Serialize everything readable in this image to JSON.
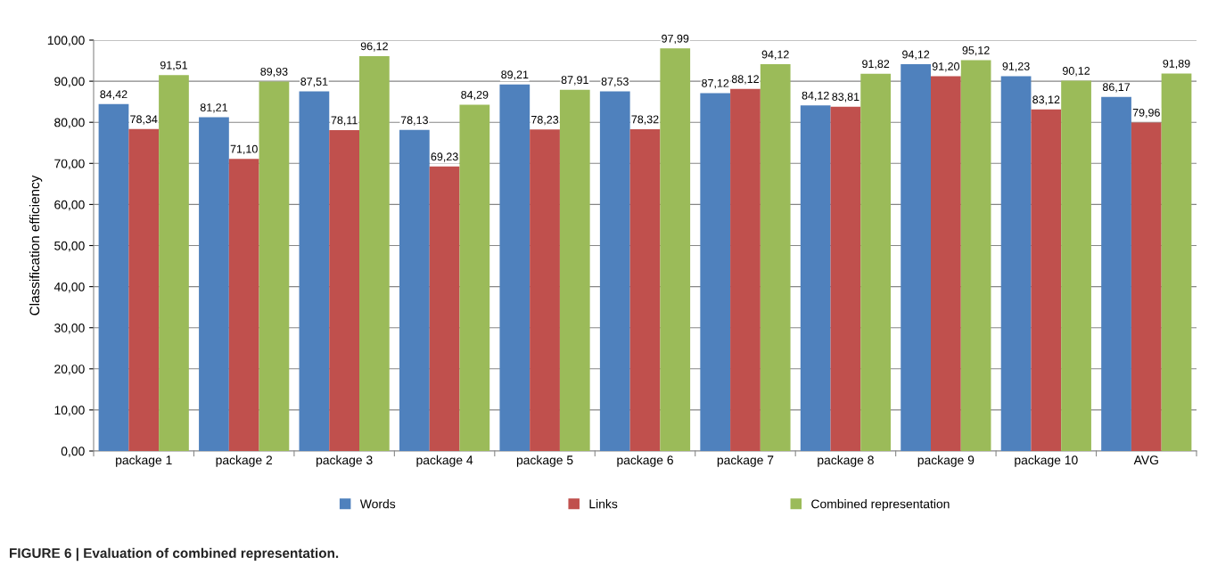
{
  "chart_data": {
    "type": "bar",
    "ylabel": "Classification efficiency",
    "categories": [
      "package 1",
      "package 2",
      "package 3",
      "package 4",
      "package 5",
      "package 6",
      "package 7",
      "package 8",
      "package 9",
      "package 10",
      "AVG"
    ],
    "series": [
      {
        "name": "Words",
        "color": "#4f81bd",
        "values": [
          84.42,
          81.21,
          87.51,
          78.13,
          89.21,
          87.53,
          87.12,
          84.12,
          94.12,
          91.23,
          86.17
        ],
        "value_labels": [
          "84,42",
          "81,21",
          "87,51",
          "78,13",
          "89,21",
          "87,53",
          "87,12",
          "84,12",
          "94,12",
          "91,23",
          "86,17"
        ]
      },
      {
        "name": "Links",
        "color": "#c0504d",
        "values": [
          78.34,
          71.1,
          78.11,
          69.23,
          78.23,
          78.32,
          88.12,
          83.81,
          91.2,
          83.12,
          79.96
        ],
        "value_labels": [
          "78,34",
          "71,10",
          "78,11",
          "69,23",
          "78,23",
          "78,32",
          "88,12",
          "83,81",
          "91,20",
          "83,12",
          "79,96"
        ]
      },
      {
        "name": "Combined representation",
        "color": "#9bbb59",
        "values": [
          91.51,
          89.93,
          96.12,
          84.29,
          87.91,
          97.99,
          94.12,
          91.82,
          95.12,
          90.12,
          91.89
        ],
        "value_labels": [
          "91,51",
          "89,93",
          "96,12",
          "84,29",
          "87,91",
          "97,99",
          "94,12",
          "91,82",
          "95,12",
          "90,12",
          "91,89"
        ]
      }
    ],
    "ylim": [
      0,
      100
    ],
    "yticks": [
      {
        "value": 0,
        "label": "0,00"
      },
      {
        "value": 10,
        "label": "10,00"
      },
      {
        "value": 20,
        "label": "20,00"
      },
      {
        "value": 30,
        "label": "30,00"
      },
      {
        "value": 40,
        "label": "40,00"
      },
      {
        "value": 50,
        "label": "50,00"
      },
      {
        "value": 60,
        "label": "60,00"
      },
      {
        "value": 70,
        "label": "70,00"
      },
      {
        "value": 80,
        "label": "80,00"
      },
      {
        "value": 90,
        "label": "90,00"
      },
      {
        "value": 100,
        "label": "100,00"
      }
    ],
    "grid": "y",
    "legend": "bottom",
    "annotations": [
      "FIGURE 6 | Evaluation of combined representation."
    ]
  }
}
